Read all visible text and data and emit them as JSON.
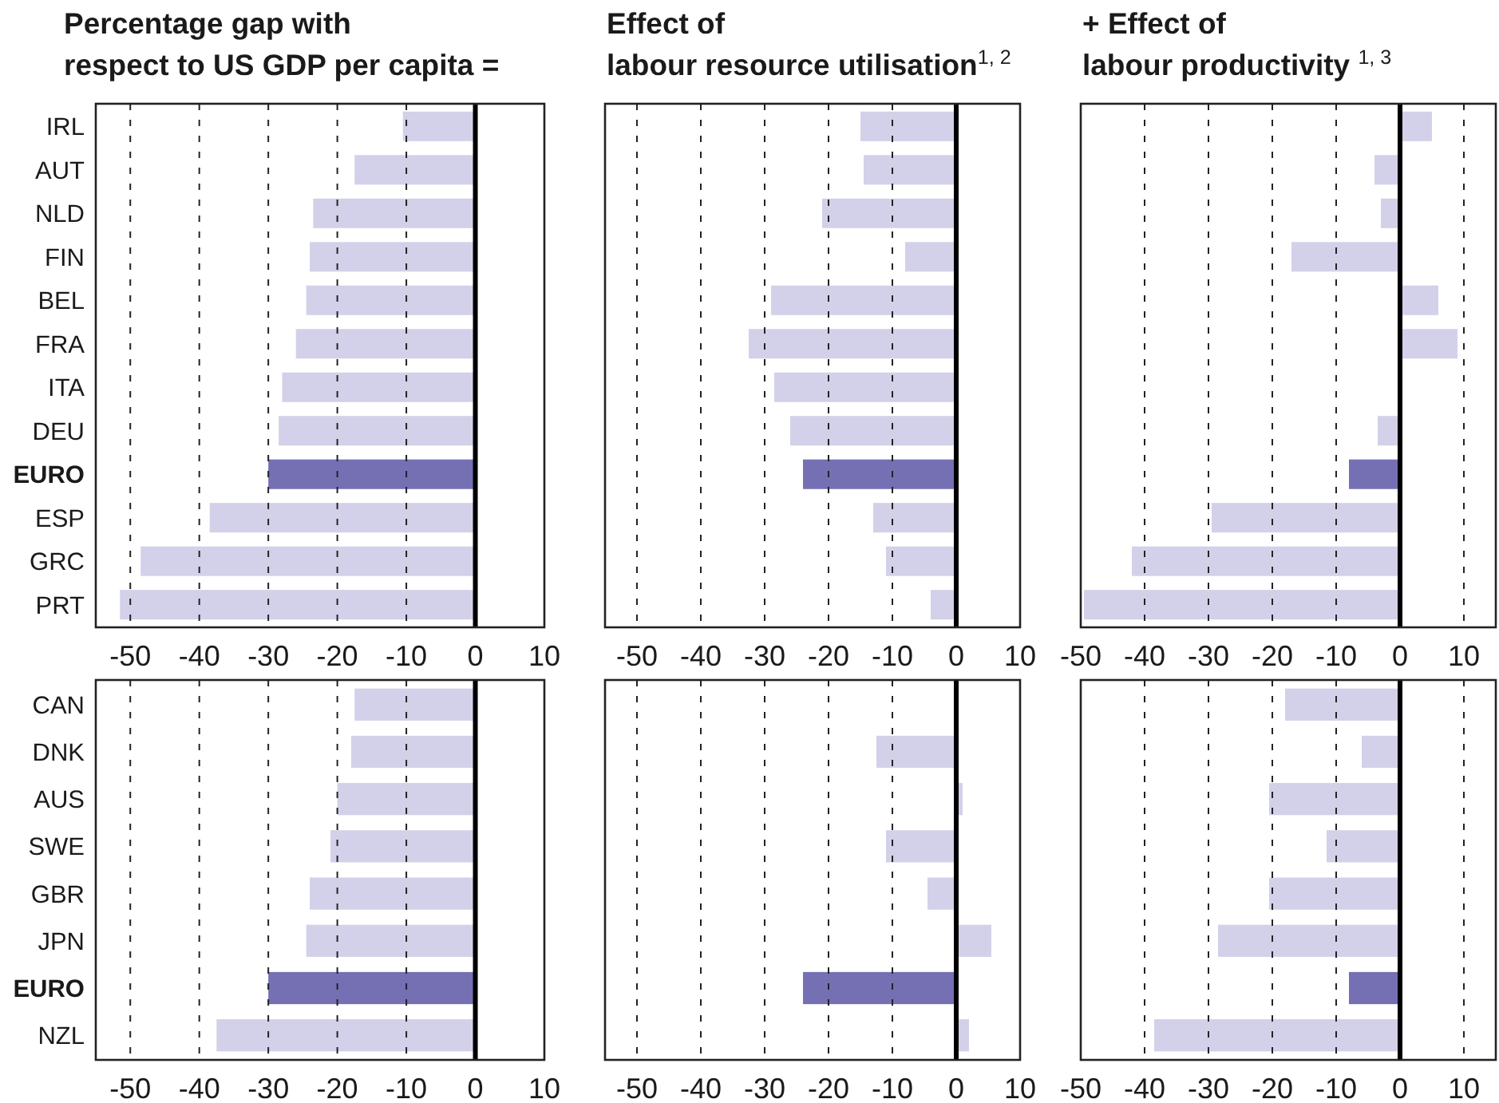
{
  "chart_data": [
    {
      "type": "bar",
      "orientation": "horizontal",
      "title": "Percentage gap with\nrespect to US GDP per capita =",
      "categories": [
        "IRL",
        "AUT",
        "NLD",
        "FIN",
        "BEL",
        "FRA",
        "ITA",
        "DEU",
        "EURO",
        "ESP",
        "GRC",
        "PRT"
      ],
      "values": [
        -10.5,
        -17.5,
        -23.5,
        -24,
        -24.5,
        -26,
        -28,
        -28.5,
        -30,
        -38.5,
        -48.5,
        -51.5
      ],
      "colors": [
        "#d3d1e9",
        "#d3d1e9",
        "#d3d1e9",
        "#d3d1e9",
        "#d3d1e9",
        "#d3d1e9",
        "#d3d1e9",
        "#d3d1e9",
        "#7570b4",
        "#d3d1e9",
        "#d3d1e9",
        "#d3d1e9"
      ],
      "xlim": [
        -55,
        10
      ],
      "xticks": [
        -50,
        -40,
        -30,
        -20,
        -10,
        0,
        10
      ],
      "grid": "x",
      "ref_lines": [
        {
          "axis": "x",
          "value": 0,
          "color": "#000000"
        }
      ]
    },
    {
      "type": "bar",
      "orientation": "horizontal",
      "title": "Effect of\nlabour resource utilisation$^{1, 2}$",
      "categories": [
        null,
        null,
        null,
        null,
        null,
        null,
        null,
        null,
        null,
        null,
        null,
        null
      ],
      "values": [
        -15,
        -14.5,
        -21,
        -8,
        -29,
        -32.5,
        -28.5,
        -26,
        -24,
        -13,
        -11,
        -4
      ],
      "colors": [
        "#d3d1e9",
        "#d3d1e9",
        "#d3d1e9",
        "#d3d1e9",
        "#d3d1e9",
        "#d3d1e9",
        "#d3d1e9",
        "#d3d1e9",
        "#7570b4",
        "#d3d1e9",
        "#d3d1e9",
        "#d3d1e9"
      ],
      "xlim": [
        -55,
        10
      ],
      "xticks": [
        -50,
        -40,
        -30,
        -20,
        -10,
        0,
        10
      ],
      "grid": "x",
      "tick_labels": "x",
      "ref_lines": [
        {
          "axis": "x",
          "value": 0,
          "color": "#000000"
        }
      ]
    },
    {
      "type": "bar",
      "orientation": "horizontal",
      "title": "+ Effect of\nlabour productivity $^{1, 3}$",
      "categories": [
        null,
        null,
        null,
        null,
        null,
        null,
        null,
        null,
        null,
        null,
        null,
        null
      ],
      "values": [
        5,
        -4,
        -3,
        -17,
        6,
        9,
        null,
        -3.5,
        -8,
        -29.5,
        -42,
        -49.5
      ],
      "colors": [
        "#d3d1e9",
        "#d3d1e9",
        "#d3d1e9",
        "#d3d1e9",
        "#d3d1e9",
        "#d3d1e9",
        "#d3d1e9",
        "#d3d1e9",
        "#7570b4",
        "#d3d1e9",
        "#d3d1e9",
        "#d3d1e9"
      ],
      "xlim": [
        -50,
        15
      ],
      "xticks": [
        -50,
        -40,
        -30,
        -20,
        -10,
        0,
        10
      ],
      "grid": "x",
      "tick_labels": "x",
      "ref_lines": [
        {
          "axis": "x",
          "value": 0,
          "color": "#000000"
        }
      ]
    },
    {
      "type": "bar",
      "orientation": "horizontal",
      "categories": [
        "CAN",
        "DNK",
        "AUS",
        "SWE",
        "GBR",
        "JPN",
        "EURO",
        "NZL"
      ],
      "values": [
        -17.5,
        -18,
        -20,
        -21,
        -24,
        -24.5,
        -30,
        -37.5
      ],
      "colors": [
        "#d3d1e9",
        "#d3d1e9",
        "#d3d1e9",
        "#d3d1e9",
        "#d3d1e9",
        "#d3d1e9",
        "#7570b4",
        "#d3d1e9"
      ],
      "xlim": [
        -55,
        10
      ],
      "xticks": [
        -50,
        -40,
        -30,
        -20,
        -10,
        0,
        10
      ],
      "grid": "x",
      "ref_lines": [
        {
          "axis": "x",
          "value": 0,
          "color": "#000000"
        }
      ]
    },
    {
      "type": "bar",
      "orientation": "horizontal",
      "categories": [
        null,
        null,
        null,
        null,
        null,
        null,
        null,
        null
      ],
      "values": [
        null,
        -12.5,
        1,
        -11,
        -4.5,
        5.5,
        -24,
        2
      ],
      "colors": [
        "#d3d1e9",
        "#d3d1e9",
        "#d3d1e9",
        "#d3d1e9",
        "#d3d1e9",
        "#d3d1e9",
        "#7570b4",
        "#d3d1e9"
      ],
      "xlim": [
        -55,
        10
      ],
      "xticks": [
        -50,
        -40,
        -30,
        -20,
        -10,
        0,
        10
      ],
      "grid": "x",
      "tick_labels": "x",
      "ref_lines": [
        {
          "axis": "x",
          "value": 0,
          "color": "#000000"
        }
      ]
    },
    {
      "type": "bar",
      "orientation": "horizontal",
      "categories": [
        null,
        null,
        null,
        null,
        null,
        null,
        null,
        null
      ],
      "values": [
        -18,
        -6,
        -20.5,
        -11.5,
        -20.5,
        -28.5,
        -8,
        -38.5
      ],
      "colors": [
        "#d3d1e9",
        "#d3d1e9",
        "#d3d1e9",
        "#d3d1e9",
        "#d3d1e9",
        "#d3d1e9",
        "#7570b4",
        "#d3d1e9"
      ],
      "xlim": [
        -50,
        15
      ],
      "xticks": [
        -50,
        -40,
        -30,
        -20,
        -10,
        0,
        10
      ],
      "grid": "x",
      "tick_labels": "x",
      "ref_lines": [
        {
          "axis": "x",
          "value": 0,
          "color": "#000000"
        }
      ]
    }
  ]
}
